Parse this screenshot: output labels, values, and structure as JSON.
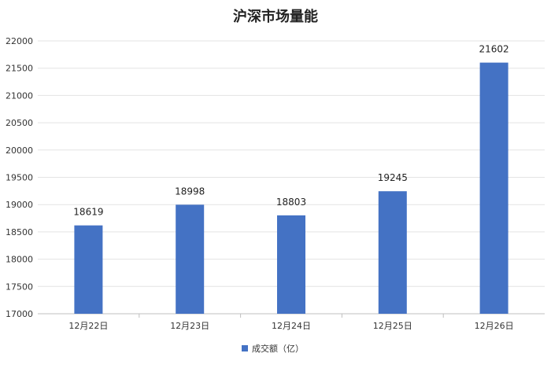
{
  "chart_data": {
    "type": "bar",
    "title": "沪深市场量能",
    "categories": [
      "12月22日",
      "12月23日",
      "12月24日",
      "12月25日",
      "12月26日"
    ],
    "series": [
      {
        "name": "成交额（亿）",
        "values": [
          18619,
          18998,
          18803,
          19245,
          21602
        ]
      }
    ],
    "data_labels": [
      "18619",
      "18998",
      "18803",
      "19245",
      "21602"
    ],
    "ylim": [
      17000,
      22000
    ],
    "yticks": [
      17000,
      17500,
      18000,
      18500,
      19000,
      19500,
      20000,
      20500,
      21000,
      21500,
      22000
    ],
    "grid": true,
    "legend_position": "bottom",
    "bar_color": "#4472c4"
  }
}
